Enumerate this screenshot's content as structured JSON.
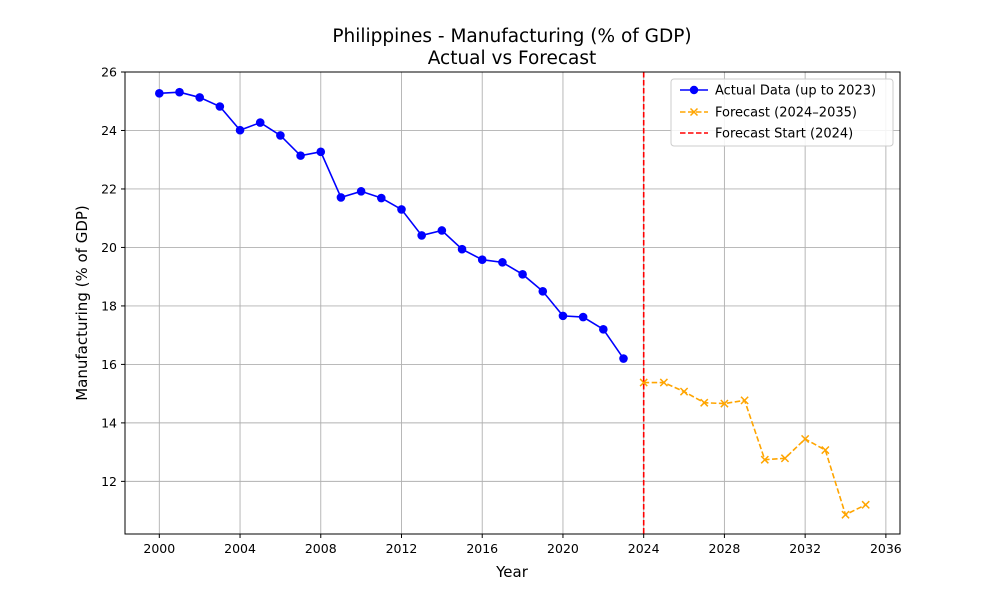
{
  "chart_data": {
    "type": "line",
    "title": "Philippines - Manufacturing (% of GDP)",
    "subtitle": "Actual vs Forecast",
    "xlabel": "Year",
    "ylabel": "Manufacturing (% of GDP)",
    "xlim": [
      1998.3,
      2036.7
    ],
    "ylim": [
      10.2,
      26.0
    ],
    "xticks": [
      2000,
      2004,
      2008,
      2012,
      2016,
      2020,
      2024,
      2028,
      2032,
      2036
    ],
    "yticks": [
      12,
      14,
      16,
      18,
      20,
      22,
      24,
      26
    ],
    "grid": true,
    "legend_position": "top-right",
    "series": [
      {
        "name": "Actual Data (up to 2023)",
        "color": "#0000ff",
        "line_style": "solid",
        "marker": "circle",
        "x": [
          2000,
          2001,
          2002,
          2003,
          2004,
          2005,
          2006,
          2007,
          2008,
          2009,
          2010,
          2011,
          2012,
          2013,
          2014,
          2015,
          2016,
          2017,
          2018,
          2019,
          2020,
          2021,
          2022,
          2023
        ],
        "y": [
          25.27,
          25.31,
          25.13,
          24.82,
          24.01,
          24.27,
          23.83,
          23.14,
          23.27,
          21.71,
          21.92,
          21.69,
          21.3,
          20.41,
          20.58,
          19.94,
          19.58,
          19.49,
          19.08,
          18.5,
          17.66,
          17.62,
          17.2,
          16.2
        ]
      },
      {
        "name": "Forecast (2024–2035)",
        "color": "#ffa500",
        "line_style": "dashed",
        "marker": "x",
        "x": [
          2024,
          2025,
          2026,
          2027,
          2028,
          2029,
          2030,
          2031,
          2032,
          2033,
          2034,
          2035
        ],
        "y": [
          15.38,
          15.38,
          15.07,
          14.69,
          14.66,
          14.77,
          12.74,
          12.79,
          13.45,
          13.07,
          10.86,
          11.2
        ]
      }
    ],
    "vline": {
      "name": "Forecast Start (2024)",
      "x": 2024,
      "color": "#ff0000",
      "line_style": "dashed"
    }
  }
}
